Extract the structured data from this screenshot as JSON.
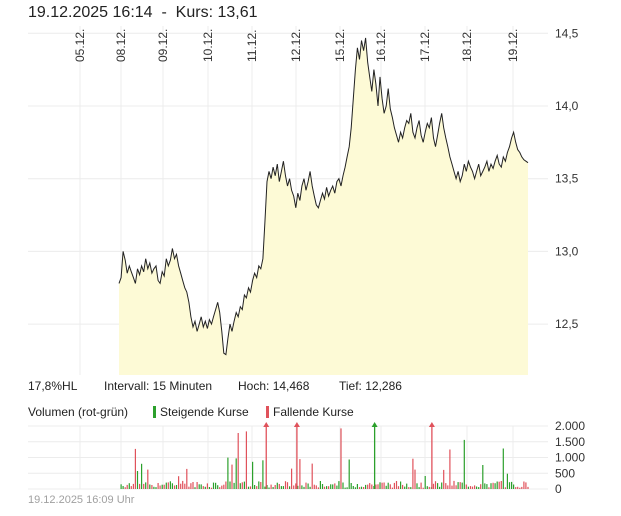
{
  "header": {
    "datetime": "19.12.2025 16:14",
    "separator": "-",
    "price_label": "Kurs:",
    "price_value": "13,61"
  },
  "stats": {
    "range": "17,8%HL",
    "interval": "Intervall: 15 Minuten",
    "high_label": "Hoch:",
    "high_value": "14,468",
    "low_label": "Tief:",
    "low_value": "12,286"
  },
  "volume_legend": {
    "title": "Volumen (rot-grün)",
    "rising": "Steigende Kurse",
    "falling": "Fallende Kurse"
  },
  "footer": "19.12.2025 16:09 Uhr",
  "colors": {
    "line": "#222222",
    "area": "#fdfad6",
    "grid": "#ececec",
    "up": "#2ca02c",
    "down": "#e0525b"
  },
  "chart_data": [
    {
      "type": "area",
      "x_tick_labels": [
        "05.12.",
        "08.12.",
        "09.12.",
        "10.12.",
        "11.12.",
        "12.12.",
        "15.12.",
        "16.12.",
        "17.12.",
        "18.12.",
        "19.12."
      ],
      "y_tick_labels": [
        "12,5",
        "13,0",
        "13,5",
        "14,0",
        "14,5"
      ],
      "ylim": [
        12.15,
        14.55
      ],
      "y_ticks": [
        12.5,
        13.0,
        13.5,
        14.0,
        14.5
      ],
      "high": 14.468,
      "low": 12.286,
      "last": 13.61,
      "series": [
        {
          "values": [
            12.78,
            12.82,
            13.0,
            12.94,
            12.85,
            12.9,
            12.86,
            12.82,
            12.78,
            12.88,
            12.84,
            12.9,
            12.86,
            12.95,
            12.88,
            12.92,
            12.85,
            12.88,
            12.9,
            12.8,
            12.78,
            12.86,
            12.83,
            12.95,
            12.9,
            12.94,
            13.02,
            12.95,
            12.98,
            12.9,
            12.85,
            12.8,
            12.75,
            12.72,
            12.65,
            12.55,
            12.48,
            12.52,
            12.45,
            12.5,
            12.55,
            12.48,
            12.52,
            12.47,
            12.53,
            12.5,
            12.55,
            12.6,
            12.65,
            12.58,
            12.45,
            12.3,
            12.29,
            12.4,
            12.5,
            12.45,
            12.52,
            12.58,
            12.55,
            12.62,
            12.6,
            12.7,
            12.68,
            12.75,
            12.72,
            12.8,
            12.85,
            12.82,
            12.9,
            12.88,
            12.95,
            13.2,
            13.48,
            13.55,
            13.5,
            13.58,
            13.52,
            13.6,
            13.48,
            13.55,
            13.62,
            13.52,
            13.45,
            13.5,
            13.42,
            13.38,
            13.3,
            13.4,
            13.35,
            13.45,
            13.5,
            13.42,
            13.48,
            13.55,
            13.45,
            13.38,
            13.32,
            13.3,
            13.35,
            13.4,
            13.36,
            13.44,
            13.38,
            13.42,
            13.45,
            13.4,
            13.48,
            13.5,
            13.45,
            13.52,
            13.58,
            13.65,
            13.72,
            13.85,
            14.05,
            14.25,
            14.4,
            14.32,
            14.45,
            14.38,
            14.468,
            14.3,
            14.2,
            14.1,
            14.25,
            14.15,
            14.0,
            14.2,
            14.05,
            13.95,
            14.0,
            14.12,
            13.98,
            13.92,
            13.85,
            13.8,
            13.75,
            13.82,
            13.78,
            13.85,
            13.9,
            13.88,
            13.95,
            13.82,
            13.78,
            13.85,
            13.9,
            13.8,
            13.75,
            13.82,
            13.88,
            13.85,
            13.92,
            13.78,
            13.72,
            13.8,
            13.88,
            13.95,
            13.85,
            13.78,
            13.72,
            13.65,
            13.6,
            13.55,
            13.5,
            13.55,
            13.48,
            13.52,
            13.6,
            13.55,
            13.62,
            13.58,
            13.55,
            13.5,
            13.55,
            13.6,
            13.52,
            13.55,
            13.58,
            13.62,
            13.55,
            13.6,
            13.57,
            13.62,
            13.66,
            13.6,
            13.58,
            13.65,
            13.62,
            13.68,
            13.72,
            13.78,
            13.82,
            13.75,
            13.7,
            13.68,
            13.65,
            13.63,
            13.62,
            13.61
          ]
        }
      ]
    },
    {
      "type": "bar",
      "title": "Volumen (rot-grün)",
      "y_tick_labels": [
        "2.000",
        "1.500",
        "1.000",
        "500",
        "0"
      ],
      "ylim": [
        0,
        2000
      ],
      "y_ticks": [
        2000,
        1500,
        1000,
        500,
        0
      ],
      "clipped_marker_colors": [
        "down",
        "down",
        "up",
        "down"
      ],
      "clipped_marker_fractions": [
        0.36,
        0.435,
        0.625,
        0.765
      ]
    }
  ]
}
